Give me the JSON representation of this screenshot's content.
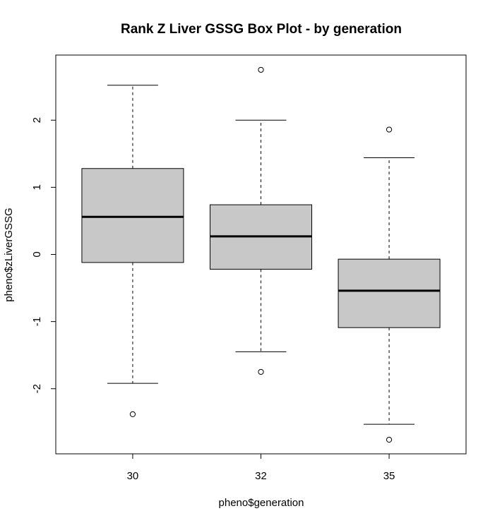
{
  "chart_data": {
    "type": "box",
    "title": "Rank Z Liver GSSG Box Plot - by generation",
    "xlabel": "pheno$generation",
    "ylabel": "pheno$zLiverGSSG",
    "ylim": [
      -2.97,
      2.97
    ],
    "yticks": [
      -2,
      -1,
      0,
      1,
      2
    ],
    "ytick_labels": [
      "-2",
      "-1",
      "0",
      "1",
      "2"
    ],
    "colors": {
      "box_fill": "#c8c8c8",
      "stroke": "#000000"
    },
    "series": [
      {
        "category": "30",
        "whisker_low": -1.92,
        "q1": -0.12,
        "median": 0.56,
        "q3": 1.28,
        "whisker_high": 2.52,
        "outliers": [
          -2.38
        ]
      },
      {
        "category": "32",
        "whisker_low": -1.45,
        "q1": -0.22,
        "median": 0.27,
        "q3": 0.74,
        "whisker_high": 2.0,
        "outliers": [
          2.75,
          -1.75
        ]
      },
      {
        "category": "35",
        "whisker_low": -2.53,
        "q1": -1.09,
        "median": -0.54,
        "q3": -0.07,
        "whisker_high": 1.44,
        "outliers": [
          1.86,
          -2.76
        ]
      }
    ]
  }
}
